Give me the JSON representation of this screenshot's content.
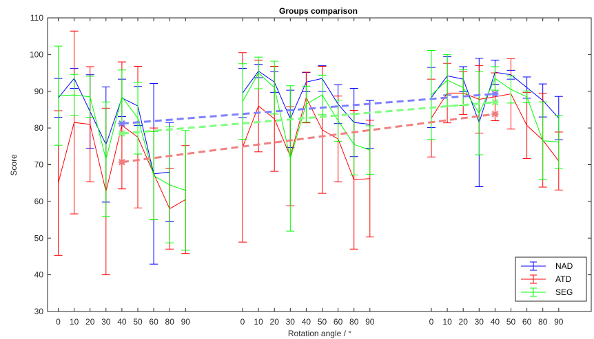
{
  "chart_data": {
    "type": "line",
    "title": "Groups comparison",
    "xlabel": "Rotation angle / °",
    "ylabel": "Score",
    "ylim": [
      30,
      110
    ],
    "yticks": [
      30,
      40,
      50,
      60,
      70,
      80,
      90,
      100,
      110
    ],
    "grid": false,
    "legend_position": "bottom-right",
    "groups": [
      {
        "angles": [
          0,
          10,
          20,
          30,
          40,
          50,
          60,
          80,
          90
        ]
      },
      {
        "angles": [
          0,
          10,
          20,
          30,
          40,
          50,
          60,
          80,
          90
        ]
      },
      {
        "angles": [
          0,
          10,
          20,
          30,
          40,
          50,
          60,
          80,
          90
        ]
      }
    ],
    "series": [
      {
        "name": "NAD",
        "color": "#0000ff",
        "trend_color": "#7f80ff",
        "groups": [
          {
            "mean": [
              88.2,
              93.5,
              84.5,
              75.5,
              88.2,
              86,
              67.5,
              68,
              null
            ],
            "err": [
              5.3,
              2.7,
              10,
              15.7,
              5.1,
              5.3,
              24.6,
              13.5,
              null
            ]
          },
          {
            "mean": [
              89.5,
              95.5,
              92.5,
              82.5,
              92.5,
              93.5,
              86.5,
              81.5,
              81
            ],
            "err": [
              6.7,
              1.8,
              2.8,
              7.8,
              2.6,
              3.5,
              5.3,
              9.3,
              6.5
            ]
          },
          {
            "mean": [
              88.3,
              94.2,
              93.3,
              81.5,
              95.2,
              94.5,
              91,
              87.5,
              82.7
            ],
            "err": [
              8.2,
              5.2,
              3.4,
              17.5,
              3.3,
              1.2,
              2.9,
              4.5,
              5.9
            ]
          }
        ],
        "trend": [
          [
            1,
            40,
            81.2
          ],
          [
            3,
            40,
            89.3
          ]
        ]
      },
      {
        "name": "ATD",
        "color": "#ff0000",
        "trend_color": "#f08080",
        "groups": [
          {
            "mean": [
              65,
              81.5,
              81,
              62.7,
              80.7,
              77.5,
              67.5,
              58,
              60.5
            ],
            "err": [
              19.7,
              24.9,
              15.7,
              22.7,
              17.3,
              19.3,
              12.5,
              11,
              14.7
            ]
          },
          {
            "mean": [
              74.7,
              86,
              82.5,
              72.3,
              88.3,
              79.5,
              77,
              65.9,
              66.2
            ],
            "err": [
              25.8,
              12.5,
              14.3,
              13.5,
              6.9,
              17.3,
              11.7,
              18.9,
              15.9
            ]
          },
          {
            "mean": [
              82.7,
              89.5,
              89.5,
              87.8,
              88.5,
              89.3,
              80.7,
              76.7,
              71
            ],
            "err": [
              10.6,
              8.1,
              5.8,
              9.2,
              6.5,
              9.6,
              9,
              12.8,
              7.9
            ]
          }
        ],
        "trend": [
          [
            1,
            40,
            70.7
          ],
          [
            3,
            40,
            83.8
          ]
        ]
      },
      {
        "name": "SEG",
        "color": "#00ff00",
        "trend_color": "#7fff7f",
        "groups": [
          {
            "mean": [
              88.8,
              89,
              88.5,
              71.5,
              88.5,
              82.7,
              67,
              64.5,
              63
            ],
            "err": [
              13.5,
              5.6,
              5.6,
              15.6,
              7.3,
              9.8,
              12,
              15.8,
              16.3
            ]
          },
          {
            "mean": [
              87.2,
              95,
              91,
              71.7,
              86.5,
              89,
              82,
              75.5,
              74
            ],
            "err": [
              10.3,
              4.3,
              7.2,
              19.8,
              4.9,
              5.4,
              5.6,
              8.3,
              6.6
            ]
          },
          {
            "mean": [
              89,
              93,
              91,
              84,
              93.5,
              90.5,
              88.5,
              76.5,
              76.2
            ],
            "err": [
              12.1,
              7,
              4.9,
              11.3,
              3.2,
              3.7,
              1.6,
              10.6,
              7.2
            ]
          }
        ],
        "trend": [
          [
            1,
            40,
            78.5
          ],
          [
            3,
            40,
            87
          ]
        ]
      }
    ]
  }
}
